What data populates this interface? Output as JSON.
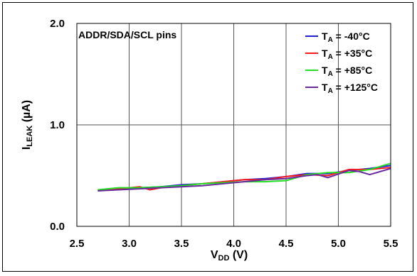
{
  "chart_data": {
    "type": "line",
    "title": "",
    "xlabel": {
      "main": "V",
      "sub": "DD",
      "suffix": " (V)"
    },
    "ylabel": {
      "main": "I",
      "sub": "LEAK",
      "suffix": " (µA)"
    },
    "annotation": "ADDR/SDA/SCL pins",
    "xlim": [
      2.5,
      5.5
    ],
    "ylim": [
      0.0,
      2.0
    ],
    "x_ticks": [
      2.5,
      3.0,
      3.5,
      4.0,
      4.5,
      5.0,
      5.5
    ],
    "x_tick_labels": [
      "2.5",
      "3.0",
      "3.5",
      "4.0",
      "4.5",
      "5.0",
      "5.5"
    ],
    "y_ticks": [
      0.0,
      1.0,
      2.0
    ],
    "y_tick_labels": [
      "0.0",
      "1.0",
      "2.0"
    ],
    "grid": true,
    "legend_position": "top-right",
    "series": [
      {
        "legend": {
          "main": "T",
          "sub": "A",
          "suffix": " = -40°C"
        },
        "color": "#1f1fd6",
        "x": [
          2.7,
          2.9,
          3.1,
          3.3,
          3.5,
          3.7,
          3.9,
          4.1,
          4.3,
          4.5,
          4.7,
          4.9,
          5.1,
          5.3,
          5.5
        ],
        "y": [
          0.35,
          0.37,
          0.38,
          0.39,
          0.41,
          0.42,
          0.44,
          0.46,
          0.47,
          0.49,
          0.52,
          0.52,
          0.55,
          0.57,
          0.6
        ]
      },
      {
        "legend": {
          "main": "T",
          "sub": "A",
          "suffix": " = +35°C"
        },
        "color": "#ff1a1a",
        "x": [
          2.7,
          2.9,
          3.1,
          3.2,
          3.3,
          3.5,
          3.7,
          3.9,
          4.1,
          4.3,
          4.5,
          4.7,
          4.9,
          5.1,
          5.3,
          5.5
        ],
        "y": [
          0.36,
          0.37,
          0.39,
          0.36,
          0.38,
          0.4,
          0.42,
          0.44,
          0.46,
          0.46,
          0.49,
          0.51,
          0.5,
          0.56,
          0.56,
          0.58
        ]
      },
      {
        "legend": {
          "main": "T",
          "sub": "A",
          "suffix": " = +85°C"
        },
        "color": "#22e022",
        "x": [
          2.7,
          2.9,
          3.1,
          3.3,
          3.5,
          3.7,
          3.9,
          4.1,
          4.3,
          4.5,
          4.7,
          4.9,
          5.1,
          5.3,
          5.5
        ],
        "y": [
          0.36,
          0.38,
          0.38,
          0.39,
          0.4,
          0.42,
          0.43,
          0.44,
          0.44,
          0.45,
          0.51,
          0.53,
          0.53,
          0.56,
          0.62
        ]
      },
      {
        "legend": {
          "main": "T",
          "sub": "A",
          "suffix": " = +125°C"
        },
        "color": "#6a2a9e",
        "x": [
          2.7,
          2.9,
          3.1,
          3.3,
          3.5,
          3.7,
          3.9,
          4.1,
          4.3,
          4.5,
          4.7,
          4.8,
          4.9,
          5.1,
          5.2,
          5.3,
          5.5
        ],
        "y": [
          0.35,
          0.36,
          0.37,
          0.38,
          0.39,
          0.4,
          0.42,
          0.44,
          0.46,
          0.47,
          0.5,
          0.51,
          0.48,
          0.55,
          0.54,
          0.51,
          0.57
        ]
      }
    ]
  }
}
